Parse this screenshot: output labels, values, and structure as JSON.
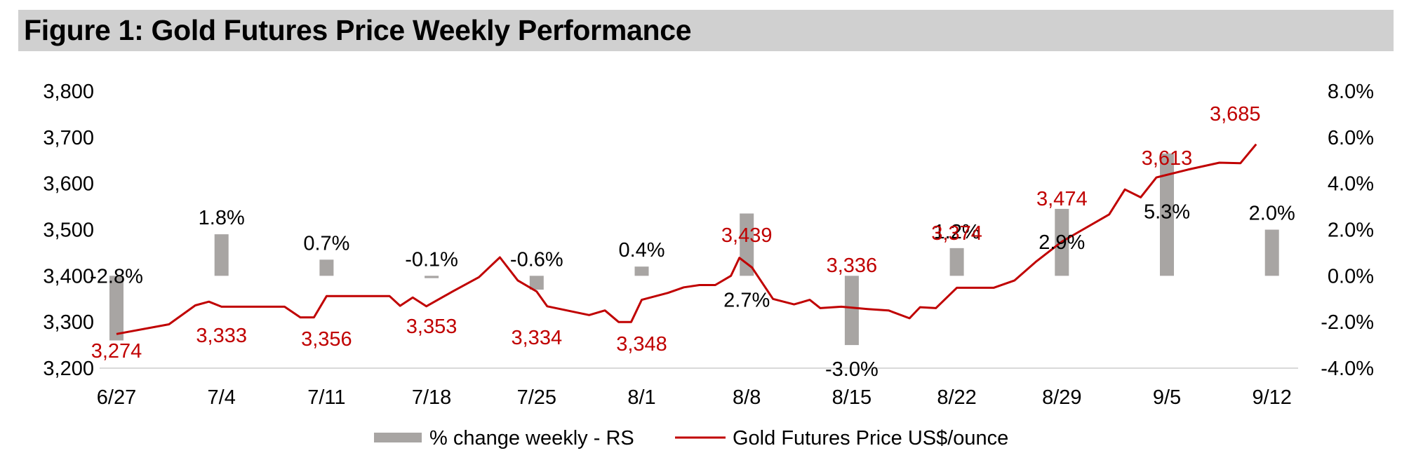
{
  "chart_data": {
    "type": "bar+line",
    "title": "Figure 1: Gold Futures Price Weekly Performance",
    "categories": [
      "6/27",
      "7/4",
      "7/11",
      "7/18",
      "7/25",
      "8/1",
      "8/8",
      "8/15",
      "8/22",
      "8/29",
      "9/5",
      "9/12"
    ],
    "left_axis": {
      "range": [
        3200,
        3800
      ],
      "ticks": [
        3200,
        3300,
        3400,
        3500,
        3600,
        3700,
        3800
      ],
      "tick_labels": [
        "3,200",
        "3,300",
        "3,400",
        "3,500",
        "3,600",
        "3,700",
        "3,800"
      ]
    },
    "right_axis": {
      "range": [
        -4.0,
        8.0
      ],
      "ticks": [
        -4,
        -2,
        0,
        2,
        4,
        6,
        8
      ],
      "tick_labels": [
        "-4.0%",
        "-2.0%",
        "0.0%",
        "2.0%",
        "4.0%",
        "6.0%",
        "8.0%"
      ]
    },
    "series": [
      {
        "name": "% change weekly - RS",
        "type": "bar",
        "axis": "right",
        "color": "#a8a5a3",
        "values": [
          -2.8,
          1.8,
          0.7,
          -0.1,
          -0.6,
          0.4,
          2.7,
          -3.0,
          1.2,
          2.9,
          5.3,
          2.0
        ],
        "labels": [
          "-2.8%",
          "1.8%",
          "0.7%",
          "-0.1%",
          "-0.6%",
          "0.4%",
          "2.7%",
          "-3.0%",
          "1.2%",
          "2.9%",
          "5.3%",
          "2.0%"
        ]
      },
      {
        "name": "Gold Futures Price US$/ounce",
        "type": "line",
        "axis": "left",
        "color": "#c00000",
        "points": [
          [
            0,
            3274
          ],
          [
            0.5,
            3295
          ],
          [
            0.75,
            3336
          ],
          [
            0.88,
            3344
          ],
          [
            1.0,
            3333
          ],
          [
            1.3,
            3333
          ],
          [
            1.6,
            3333
          ],
          [
            1.75,
            3310
          ],
          [
            1.88,
            3310
          ],
          [
            2.0,
            3356
          ],
          [
            2.3,
            3356
          ],
          [
            2.6,
            3356
          ],
          [
            2.7,
            3335
          ],
          [
            2.82,
            3353
          ],
          [
            2.95,
            3334
          ],
          [
            3.2,
            3366
          ],
          [
            3.45,
            3397
          ],
          [
            3.65,
            3440
          ],
          [
            3.82,
            3390
          ],
          [
            4.0,
            3366
          ],
          [
            4.1,
            3334
          ],
          [
            4.5,
            3315
          ],
          [
            4.65,
            3325
          ],
          [
            4.78,
            3300
          ],
          [
            4.9,
            3300
          ],
          [
            5.0,
            3348
          ],
          [
            5.25,
            3363
          ],
          [
            5.4,
            3375
          ],
          [
            5.55,
            3380
          ],
          [
            5.7,
            3380
          ],
          [
            5.85,
            3400
          ],
          [
            5.93,
            3439
          ],
          [
            6.05,
            3418
          ],
          [
            6.25,
            3350
          ],
          [
            6.45,
            3338
          ],
          [
            6.6,
            3348
          ],
          [
            6.7,
            3330
          ],
          [
            6.9,
            3333
          ],
          [
            7.15,
            3328
          ],
          [
            7.35,
            3325
          ],
          [
            7.55,
            3308
          ],
          [
            7.65,
            3332
          ],
          [
            7.8,
            3330
          ],
          [
            8.0,
            3374
          ],
          [
            8.35,
            3374
          ],
          [
            8.55,
            3390
          ],
          [
            8.75,
            3430
          ],
          [
            9.0,
            3474
          ],
          [
            9.45,
            3533
          ],
          [
            9.6,
            3587
          ],
          [
            9.75,
            3570
          ],
          [
            9.9,
            3613
          ],
          [
            10.2,
            3630
          ],
          [
            10.5,
            3645
          ],
          [
            10.7,
            3644
          ],
          [
            10.85,
            3685
          ]
        ],
        "labels": [
          {
            "x": 0.0,
            "text": "3,274"
          },
          {
            "x": 1.0,
            "text": "3,333"
          },
          {
            "x": 2.0,
            "text": "3,356"
          },
          {
            "x": 3.0,
            "text": "3,353"
          },
          {
            "x": 4.0,
            "text": "3,334"
          },
          {
            "x": 5.0,
            "text": "3,348"
          },
          {
            "x": 6.0,
            "text": "3,439"
          },
          {
            "x": 7.0,
            "text": "3,336"
          },
          {
            "x": 8.0,
            "text": "3,374"
          },
          {
            "x": 9.0,
            "text": "3,474"
          },
          {
            "x": 10.0,
            "text": "3,613"
          },
          {
            "x": 10.85,
            "text": "3,685"
          }
        ]
      }
    ],
    "legend": {
      "position": "bottom-center",
      "entries": [
        "% change weekly - RS",
        "Gold Futures Price US$/ounce"
      ]
    },
    "grid": false
  }
}
